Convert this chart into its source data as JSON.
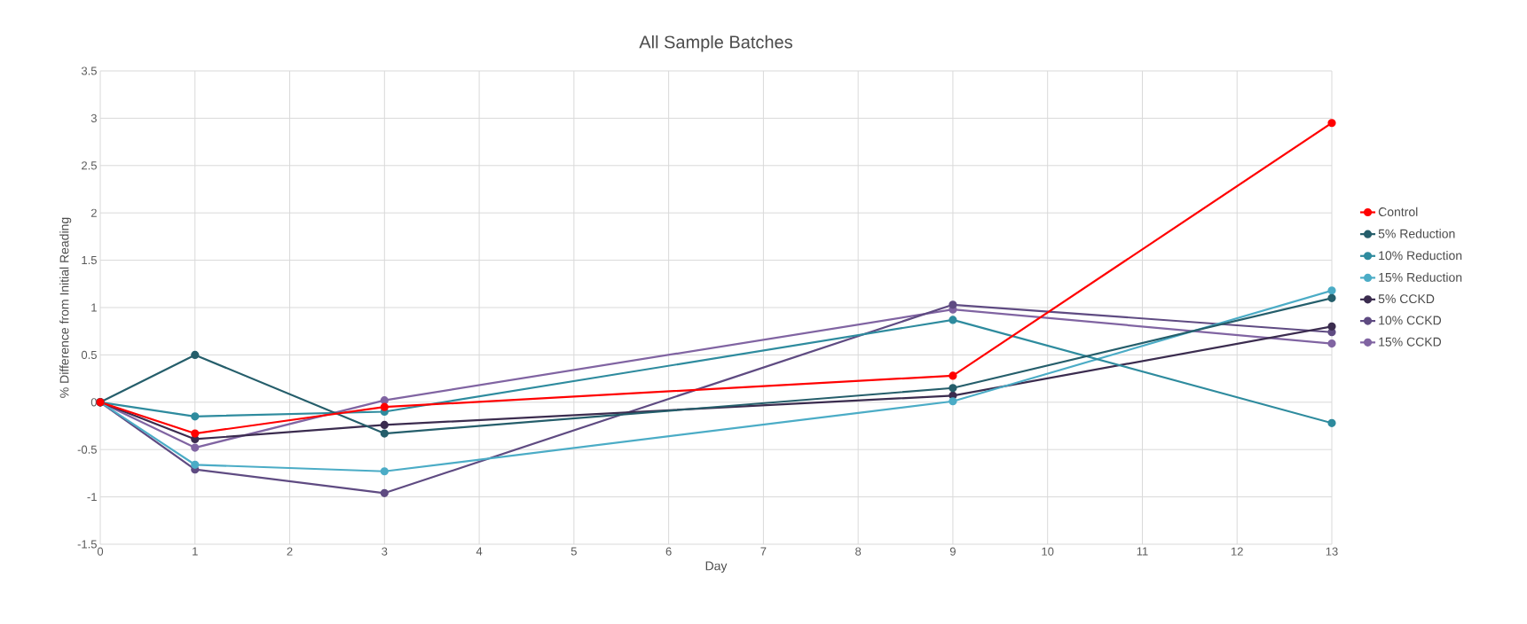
{
  "chart_data": {
    "type": "line",
    "title": "All Sample Batches",
    "xlabel": "Day",
    "ylabel": "% Difference from Initial Reading",
    "x": [
      0,
      1,
      3,
      9,
      13
    ],
    "series": [
      {
        "name": "Control",
        "color": "#ff0000",
        "values": [
          0,
          -0.33,
          -0.05,
          0.28,
          2.95
        ]
      },
      {
        "name": "5% Reduction",
        "color": "#255e6b",
        "values": [
          0,
          0.5,
          -0.33,
          0.15,
          1.1
        ]
      },
      {
        "name": "10% Reduction",
        "color": "#2e8b9e",
        "values": [
          0,
          -0.15,
          -0.1,
          0.87,
          -0.22
        ]
      },
      {
        "name": "15% Reduction",
        "color": "#4bacc6",
        "values": [
          0,
          -0.66,
          -0.73,
          0.01,
          1.18
        ]
      },
      {
        "name": "5% CCKD",
        "color": "#3b2c4f",
        "values": [
          0,
          -0.39,
          -0.24,
          0.07,
          0.8
        ]
      },
      {
        "name": "10% CCKD",
        "color": "#5f4b82",
        "values": [
          0,
          -0.71,
          -0.96,
          1.03,
          0.74
        ]
      },
      {
        "name": "15% CCKD",
        "color": "#8064a2",
        "values": [
          0,
          -0.48,
          0.02,
          0.98,
          0.62
        ]
      }
    ],
    "xlim": [
      0,
      13
    ],
    "xticks": [
      0,
      1,
      2,
      3,
      4,
      5,
      6,
      7,
      8,
      9,
      10,
      11,
      12,
      13
    ],
    "ylim": [
      -1.5,
      3.5
    ],
    "yticks": [
      -1.5,
      -1,
      -0.5,
      0,
      0.5,
      1,
      1.5,
      2,
      2.5,
      3,
      3.5
    ],
    "grid": true,
    "legend": "right",
    "marker": "circle",
    "line_style": "solid"
  }
}
